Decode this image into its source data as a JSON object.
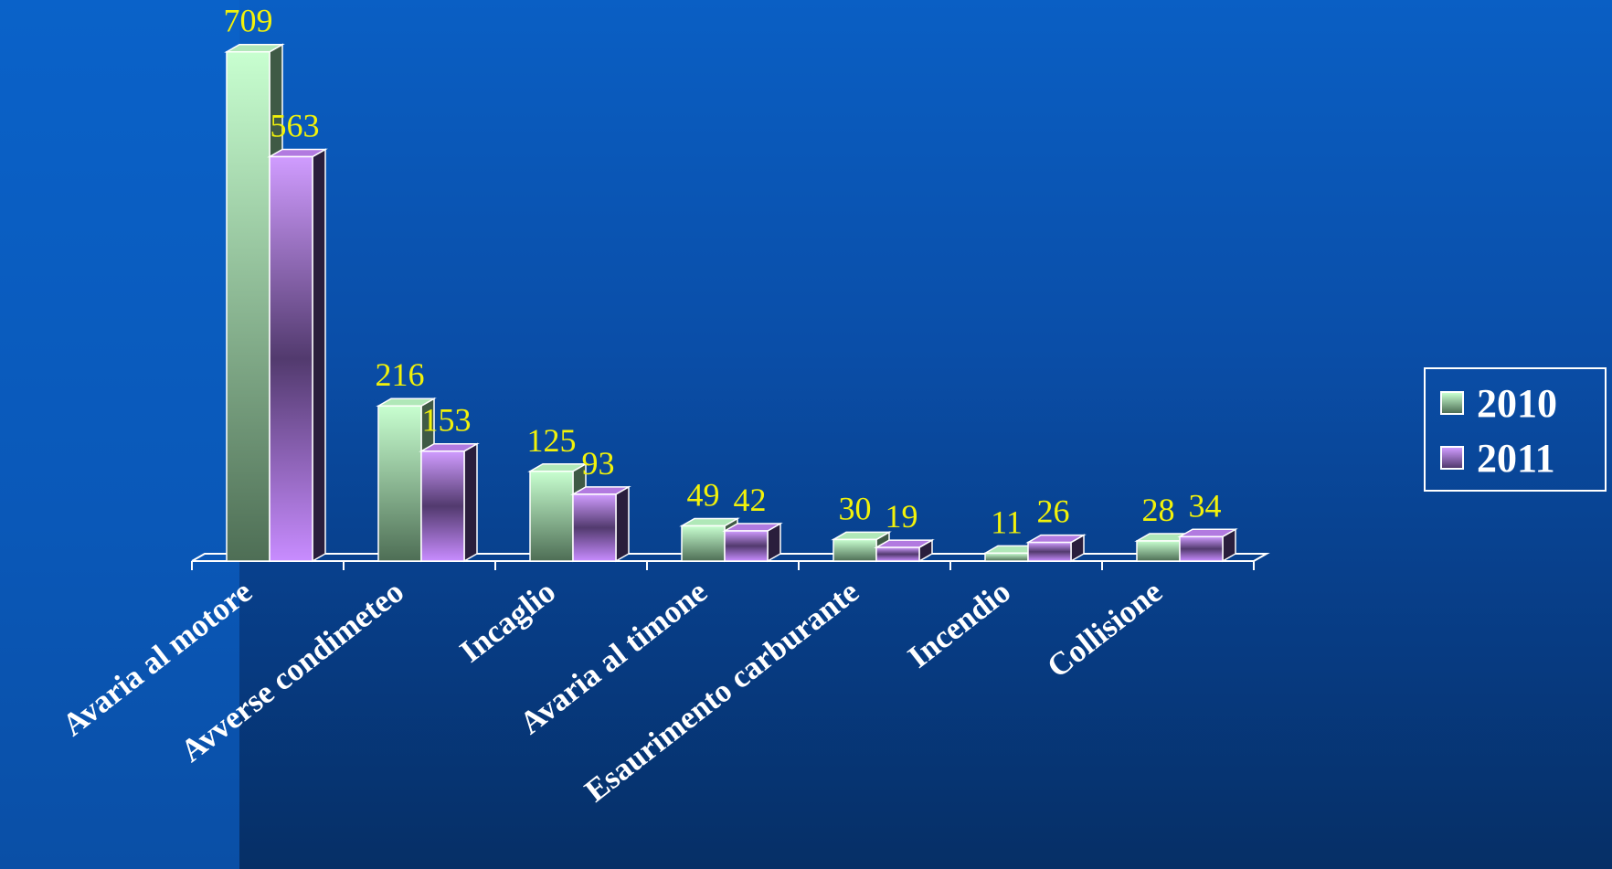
{
  "chart_data": {
    "type": "bar",
    "categories": [
      "Avaria al motore",
      "Avverse condimeteo",
      "Incaglio",
      "Avaria al timone",
      "Esaurimento carburante",
      "Incendio",
      "Collisione"
    ],
    "series": [
      {
        "name": "2010",
        "values": [
          709,
          216,
          125,
          49,
          30,
          11,
          28
        ],
        "color": "#b8f0c0"
      },
      {
        "name": "2011",
        "values": [
          563,
          153,
          93,
          42,
          19,
          26,
          34
        ],
        "color": "#c080f0"
      }
    ],
    "value_labels": true,
    "legend_position": "right",
    "style": "3d-clustered-column",
    "grid": false
  },
  "colors": {
    "value_label": "#f2f20a",
    "category_label": "#ffffff",
    "axis": "#ffffff"
  }
}
